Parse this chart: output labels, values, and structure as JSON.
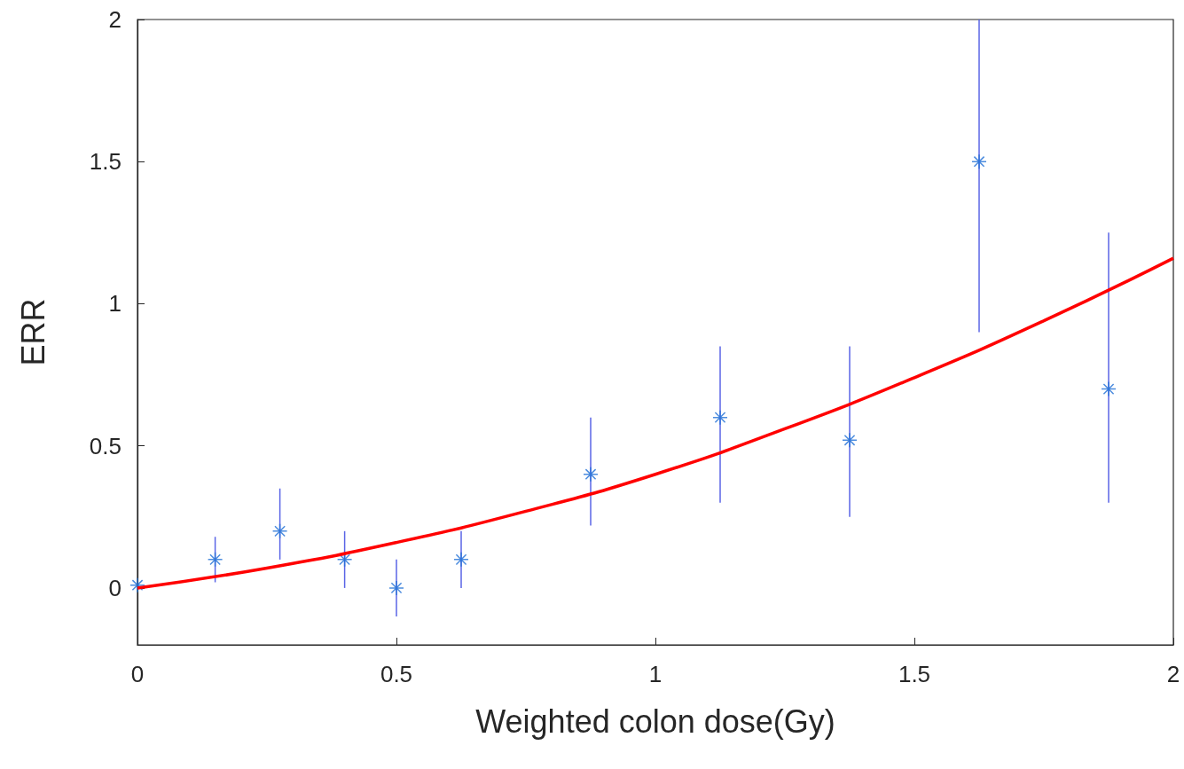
{
  "chart_data": {
    "type": "scatter",
    "xlabel": "Weighted colon dose(Gy)",
    "ylabel": "ERR",
    "xlim": [
      0,
      2
    ],
    "xticks": [
      0,
      0.5,
      1,
      1.5,
      2
    ],
    "ylim": [
      -0.2,
      2
    ],
    "yticks": [
      0,
      0.5,
      1,
      1.5,
      2
    ],
    "grid": false,
    "series": [
      {
        "color": "#1f6fd6",
        "marker": "cross",
        "x": [
          0,
          0.15,
          0.275,
          0.4,
          0.5,
          0.625,
          0.875,
          1.125,
          1.375,
          1.625,
          1.875
        ],
        "values": [
          0.01,
          0.1,
          0.2,
          0.1,
          0,
          0.1,
          0.4,
          0.6,
          0.52,
          1.5,
          0.7
        ],
        "errors": [
          null,
          [
            0.02,
            0.18
          ],
          [
            0.1,
            0.35
          ],
          [
            0,
            0.2
          ],
          [
            -0.1,
            0.1
          ],
          [
            0,
            0.2
          ],
          [
            0.22,
            0.6
          ],
          [
            0.3,
            0.85
          ],
          [
            0.25,
            0.85
          ],
          [
            0.9,
            2
          ],
          [
            0.3,
            1.25
          ]
        ]
      },
      {
        "type": "line",
        "color": "#ff0000",
        "marker": "none",
        "line_style": "solid",
        "x": [
          0,
          0.25,
          0.5,
          0.75,
          1,
          1.25,
          1.5,
          1.75,
          2
        ],
        "values": [
          0,
          0.07,
          0.16,
          0.27,
          0.4,
          0.56,
          0.74,
          0.94,
          1.16
        ]
      }
    ]
  }
}
